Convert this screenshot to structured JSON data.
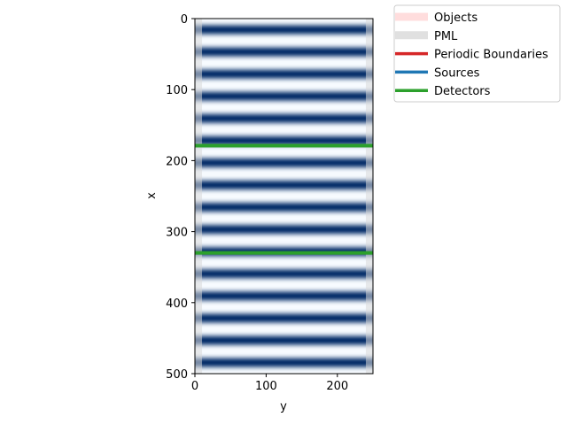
{
  "chart_data": {
    "type": "heatmap",
    "title": "",
    "xlabel": "y",
    "ylabel": "x",
    "x_axis": {
      "range": [
        0,
        250
      ],
      "ticks": [
        0,
        100,
        200
      ]
    },
    "y_axis": {
      "range": [
        0,
        500
      ],
      "ticks": [
        0,
        100,
        200,
        300,
        400,
        500
      ],
      "inverted": true
    },
    "field": {
      "description_of_pattern": "standing-wave intensity bands along x",
      "period_x": 31.25,
      "colormap": "Blues",
      "min_color": "#f7fbff",
      "max_color": "#08306b"
    },
    "pml": {
      "thickness": 10,
      "color": "#d9d9d9"
    },
    "detectors": [
      {
        "x": 179,
        "color": "#2ca02c"
      },
      {
        "x": 330,
        "color": "#2ca02c"
      }
    ],
    "legend": {
      "placement": "outside-top-right",
      "entries": [
        {
          "label": "Objects",
          "color": "#ffdddd",
          "style": "thick-pale"
        },
        {
          "label": "PML",
          "color": "#e0e0e0",
          "style": "thick-pale"
        },
        {
          "label": "Periodic Boundaries",
          "color": "#d62728",
          "style": "line"
        },
        {
          "label": "Sources",
          "color": "#1f77b4",
          "style": "line"
        },
        {
          "label": "Detectors",
          "color": "#2ca02c",
          "style": "line"
        }
      ]
    }
  }
}
